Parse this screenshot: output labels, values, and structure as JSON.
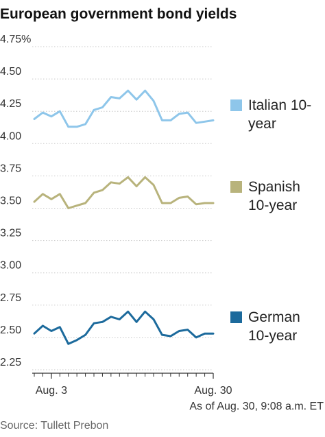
{
  "chart_data": {
    "type": "line",
    "title": "European government bond yields",
    "note": "As of Aug. 30, 9:08 a.m. ET",
    "source": "Source: Tullett Prebon",
    "y_ticks": [
      "4.75%",
      "4.50",
      "4.25",
      "4.00",
      "3.75",
      "3.50",
      "3.25",
      "3.00",
      "2.75",
      "2.50",
      "2.25"
    ],
    "y_tick_values": [
      4.75,
      4.5,
      4.25,
      4.0,
      3.75,
      3.5,
      3.25,
      3.0,
      2.75,
      2.5,
      2.25
    ],
    "ylim": [
      2.2,
      4.8
    ],
    "x_tick_labels": [
      "Aug. 3",
      "Aug. 30"
    ],
    "x_tick_indices": [
      2,
      21
    ],
    "x_count": 22,
    "grid": true,
    "legend_placement": "right, next to each series",
    "series": [
      {
        "name_lines": [
          "Italian 10-",
          "year"
        ],
        "color": "#8ec6ea",
        "values": [
          4.19,
          4.24,
          4.21,
          4.25,
          4.13,
          4.13,
          4.15,
          4.26,
          4.28,
          4.36,
          4.35,
          4.41,
          4.34,
          4.41,
          4.33,
          4.18,
          4.18,
          4.23,
          4.24,
          4.16,
          4.17,
          4.18
        ]
      },
      {
        "name_lines": [
          "Spanish",
          "10-year"
        ],
        "color": "#b8b37c",
        "values": [
          3.55,
          3.61,
          3.57,
          3.61,
          3.5,
          3.52,
          3.54,
          3.62,
          3.64,
          3.7,
          3.69,
          3.74,
          3.67,
          3.74,
          3.68,
          3.54,
          3.54,
          3.58,
          3.59,
          3.53,
          3.54,
          3.54
        ]
      },
      {
        "name_lines": [
          "German",
          "10-year"
        ],
        "color": "#1c6a9c",
        "values": [
          2.53,
          2.59,
          2.55,
          2.58,
          2.45,
          2.48,
          2.52,
          2.61,
          2.62,
          2.66,
          2.64,
          2.7,
          2.62,
          2.7,
          2.64,
          2.52,
          2.51,
          2.55,
          2.56,
          2.5,
          2.53,
          2.53
        ]
      }
    ]
  }
}
